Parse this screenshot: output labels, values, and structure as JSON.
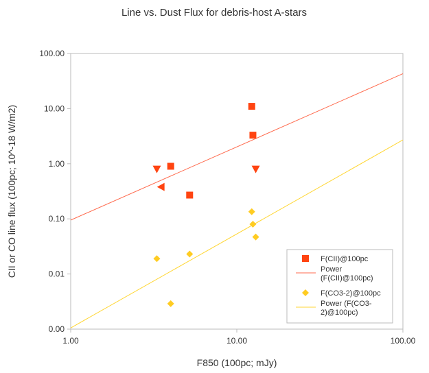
{
  "chart_data": {
    "type": "scatter",
    "title": "Line vs. Dust Flux for debris-host A-stars",
    "xlabel": "F850 (100pc; mJy)",
    "ylabel": "CII or CO line flux (100pc; 10^-18 W/m2)",
    "xscale": "log",
    "yscale": "log",
    "xlim": [
      1,
      100
    ],
    "ylim": [
      0.001,
      100
    ],
    "x_ticks": [
      1,
      10,
      100
    ],
    "x_tick_labels": [
      "1.00",
      "10.00",
      "100.00"
    ],
    "y_ticks": [
      0.001,
      0.01,
      0.1,
      1,
      10,
      100
    ],
    "y_tick_labels": [
      "0.00",
      "0.01",
      "0.10",
      "1.00",
      "10.00",
      "100.00"
    ],
    "grid": false,
    "legend_position": "bottom-right",
    "colors": {
      "cii": "#ff4411",
      "cii_fit": "#ff6a4d",
      "co": "#ffcc22",
      "co_fit": "#ffd633",
      "frame": "#bbbbbb"
    },
    "series": [
      {
        "name": "F(CII)@100pc",
        "marker": "square",
        "points": [
          {
            "x": 4.0,
            "y": 0.9
          },
          {
            "x": 5.2,
            "y": 0.27
          },
          {
            "x": 12.3,
            "y": 11.0
          },
          {
            "x": 12.5,
            "y": 3.3
          }
        ]
      },
      {
        "name": "",
        "marker": "triangle-down",
        "points": [
          {
            "x": 3.3,
            "y": 0.8
          },
          {
            "x": 13.0,
            "y": 0.8
          }
        ]
      },
      {
        "name": "",
        "marker": "triangle-left",
        "points": [
          {
            "x": 3.5,
            "y": 0.38
          }
        ]
      },
      {
        "name": "F(CO3-2)@100pc",
        "marker": "diamond",
        "points": [
          {
            "x": 3.3,
            "y": 0.019
          },
          {
            "x": 4.0,
            "y": 0.0029
          },
          {
            "x": 5.2,
            "y": 0.023
          },
          {
            "x": 12.3,
            "y": 0.135
          },
          {
            "x": 12.5,
            "y": 0.08
          },
          {
            "x": 13.0,
            "y": 0.047
          }
        ]
      }
    ],
    "fits": [
      {
        "name": "Power (F(CII)@100pc)",
        "type": "power",
        "x": [
          1,
          100
        ],
        "y": [
          0.095,
          43
        ]
      },
      {
        "name": "Power (F(CO3-2)@100pc)",
        "type": "power",
        "x": [
          1,
          100
        ],
        "y": [
          0.00105,
          2.7
        ]
      }
    ],
    "legend": [
      {
        "label": "F(CII)@100pc",
        "marker": "square"
      },
      {
        "label": "Power (F(CII)@100pc)",
        "marker": "line-cii",
        "lines": [
          "Power",
          "(F(CII)@100pc)"
        ]
      },
      {
        "label": "F(CO3-2)@100pc",
        "marker": "diamond"
      },
      {
        "label": "Power (F(CO3-2)@100pc)",
        "marker": "line-co",
        "lines": [
          "Power (F(CO3-",
          "2)@100pc)"
        ]
      }
    ]
  }
}
